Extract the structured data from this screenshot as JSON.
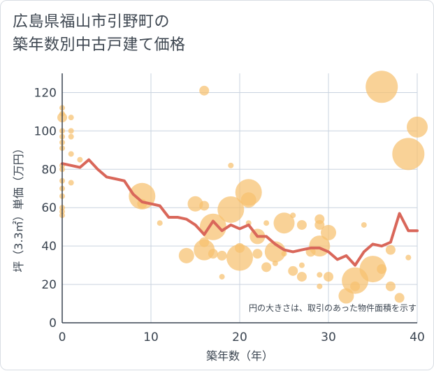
{
  "chart_data": {
    "type": "scatter",
    "title_lines": [
      "広島県福山市引野町の",
      "築年数別中古戸建て価格"
    ],
    "xlabel": "築年数（年）",
    "ylabel": "坪（3.3㎡）単価（万円）",
    "xlim": [
      0,
      40
    ],
    "ylim": [
      0,
      130
    ],
    "x_ticks": [
      0,
      10,
      20,
      30,
      40
    ],
    "y_ticks": [
      0,
      20,
      40,
      60,
      80,
      100,
      120
    ],
    "note": "円の大きさは、取引のあった物件面積を示す",
    "grid": true,
    "colors": {
      "bubble": "#f6c06f",
      "line": "#d9675a",
      "grid": "#c9d3df",
      "axis": "#3a4450"
    },
    "bubbles": [
      {
        "x": 0,
        "y": 112,
        "s": 1
      },
      {
        "x": 0,
        "y": 109,
        "s": 1
      },
      {
        "x": 0,
        "y": 107,
        "s": 2
      },
      {
        "x": 0,
        "y": 100,
        "s": 1
      },
      {
        "x": 0,
        "y": 97,
        "s": 1
      },
      {
        "x": 0,
        "y": 94,
        "s": 1
      },
      {
        "x": 0,
        "y": 91,
        "s": 1
      },
      {
        "x": 0,
        "y": 82,
        "s": 1
      },
      {
        "x": 0,
        "y": 80,
        "s": 1
      },
      {
        "x": 0,
        "y": 74,
        "s": 1
      },
      {
        "x": 0,
        "y": 70,
        "s": 1
      },
      {
        "x": 0,
        "y": 66,
        "s": 1
      },
      {
        "x": 0,
        "y": 60,
        "s": 1
      },
      {
        "x": 0,
        "y": 58,
        "s": 1
      },
      {
        "x": 0,
        "y": 56,
        "s": 1
      },
      {
        "x": 1,
        "y": 107,
        "s": 1
      },
      {
        "x": 1,
        "y": 100,
        "s": 1
      },
      {
        "x": 1,
        "y": 97,
        "s": 1
      },
      {
        "x": 1,
        "y": 88,
        "s": 1
      },
      {
        "x": 1,
        "y": 73,
        "s": 1
      },
      {
        "x": 2,
        "y": 85,
        "s": 1
      },
      {
        "x": 9,
        "y": 66,
        "s": 5
      },
      {
        "x": 9,
        "y": 62,
        "s": 2
      },
      {
        "x": 11,
        "y": 52,
        "s": 1
      },
      {
        "x": 14,
        "y": 35,
        "s": 3
      },
      {
        "x": 15,
        "y": 62,
        "s": 3
      },
      {
        "x": 16,
        "y": 121,
        "s": 2
      },
      {
        "x": 16,
        "y": 61,
        "s": 2
      },
      {
        "x": 16,
        "y": 42,
        "s": 2
      },
      {
        "x": 16,
        "y": 38,
        "s": 4
      },
      {
        "x": 17,
        "y": 50,
        "s": 5
      },
      {
        "x": 17,
        "y": 36,
        "s": 2
      },
      {
        "x": 18,
        "y": 35,
        "s": 2
      },
      {
        "x": 18,
        "y": 24,
        "s": 1
      },
      {
        "x": 19,
        "y": 82,
        "s": 1
      },
      {
        "x": 19,
        "y": 59,
        "s": 5
      },
      {
        "x": 20,
        "y": 39,
        "s": 2
      },
      {
        "x": 20,
        "y": 34,
        "s": 5
      },
      {
        "x": 21,
        "y": 68,
        "s": 5
      },
      {
        "x": 21,
        "y": 64,
        "s": 3
      },
      {
        "x": 21,
        "y": 52,
        "s": 1
      },
      {
        "x": 22,
        "y": 45,
        "s": 3
      },
      {
        "x": 22,
        "y": 36,
        "s": 2
      },
      {
        "x": 23,
        "y": 52,
        "s": 1
      },
      {
        "x": 23,
        "y": 29,
        "s": 2
      },
      {
        "x": 24,
        "y": 37,
        "s": 4
      },
      {
        "x": 24,
        "y": 31,
        "s": 1
      },
      {
        "x": 25,
        "y": 52,
        "s": 4
      },
      {
        "x": 25,
        "y": 36,
        "s": 1
      },
      {
        "x": 26,
        "y": 56,
        "s": 1
      },
      {
        "x": 26,
        "y": 27,
        "s": 2
      },
      {
        "x": 27,
        "y": 51,
        "s": 2
      },
      {
        "x": 27,
        "y": 30,
        "s": 1
      },
      {
        "x": 27,
        "y": 24,
        "s": 2
      },
      {
        "x": 28,
        "y": 37,
        "s": 2
      },
      {
        "x": 29,
        "y": 54,
        "s": 2
      },
      {
        "x": 29,
        "y": 51,
        "s": 2
      },
      {
        "x": 29,
        "y": 40,
        "s": 4
      },
      {
        "x": 29,
        "y": 25,
        "s": 1
      },
      {
        "x": 29,
        "y": 19,
        "s": 1
      },
      {
        "x": 30,
        "y": 47,
        "s": 3
      },
      {
        "x": 30,
        "y": 24,
        "s": 2
      },
      {
        "x": 32,
        "y": 14,
        "s": 3
      },
      {
        "x": 33,
        "y": 22,
        "s": 5
      },
      {
        "x": 33,
        "y": 19,
        "s": 2
      },
      {
        "x": 34,
        "y": 51,
        "s": 1
      },
      {
        "x": 35,
        "y": 28,
        "s": 5
      },
      {
        "x": 36,
        "y": 123,
        "s": 6
      },
      {
        "x": 36,
        "y": 28,
        "s": 2
      },
      {
        "x": 37,
        "y": 38,
        "s": 2
      },
      {
        "x": 37,
        "y": 19,
        "s": 2
      },
      {
        "x": 38,
        "y": 13,
        "s": 2
      },
      {
        "x": 39,
        "y": 88,
        "s": 6
      },
      {
        "x": 39,
        "y": 34,
        "s": 1
      },
      {
        "x": 40,
        "y": 102,
        "s": 4
      }
    ],
    "trend": {
      "x": [
        0,
        1,
        2,
        3,
        4,
        5,
        6,
        7,
        8,
        9,
        10,
        11,
        12,
        13,
        14,
        15,
        16,
        17,
        18,
        19,
        20,
        21,
        22,
        23,
        24,
        25,
        26,
        27,
        28,
        29,
        30,
        31,
        32,
        33,
        34,
        35,
        36,
        37,
        38,
        39,
        40
      ],
      "y": [
        83,
        82,
        81,
        85,
        80,
        76,
        75,
        74,
        67,
        63,
        62,
        61,
        55,
        55,
        54,
        51,
        46,
        53,
        48,
        51,
        49,
        51,
        45,
        45,
        41,
        38,
        37,
        38,
        39,
        39,
        37,
        33,
        35,
        30,
        37,
        41,
        40,
        42,
        57,
        48,
        48
      ]
    }
  }
}
